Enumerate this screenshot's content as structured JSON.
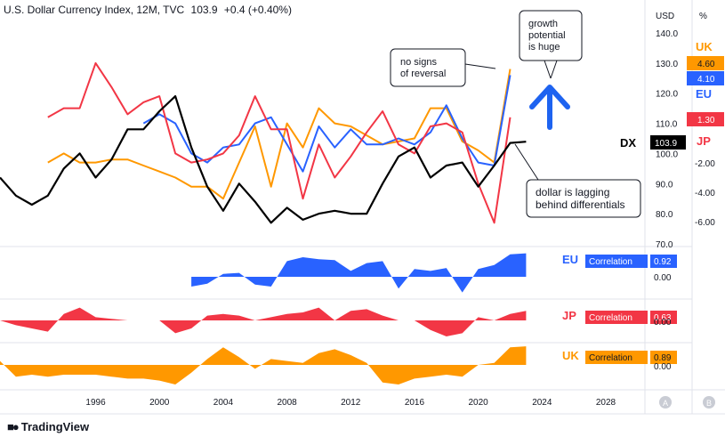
{
  "header": {
    "symbol": "U.S. Dollar Currency Index, 12M, TVC",
    "last": "103.9",
    "change": "+0.4 (+0.40%)"
  },
  "scale_labels": {
    "left_unit": "USD",
    "right_unit": "%"
  },
  "brand": {
    "logo_icon": "tradingview-logo-icon",
    "name": "TradingView"
  },
  "colors": {
    "DX": "#000000",
    "UK": "#ff9800",
    "EU": "#2962ff",
    "JP": "#f23645",
    "annotation_arrow": "#1e63f0"
  },
  "callouts": {
    "no_signs_line1": "no signs",
    "no_signs_line2": "of reversal",
    "growth_line1": "growth",
    "growth_line2": "potential",
    "growth_line3": "is huge",
    "lagging_line1": "dollar is lagging",
    "lagging_line2": "behind differentials"
  },
  "series_labels": {
    "dx": "DX",
    "uk": "UK",
    "eu": "EU",
    "jp": "JP"
  },
  "badges": {
    "uk": "4.60",
    "eu": "4.10",
    "jp": "1.30",
    "dx": "103.9"
  },
  "correlation": {
    "label": "Correlation",
    "zero_label": "0.00",
    "eu": "0.92",
    "jp": "0.63",
    "uk": "0.89"
  },
  "scale_buttons": {
    "auto": "A",
    "base": "B"
  },
  "chart_data": {
    "type": "line",
    "title": "U.S. Dollar Currency Index, 12M, TVC",
    "x": [
      1990,
      1991,
      1992,
      1993,
      1994,
      1995,
      1996,
      1997,
      1998,
      1999,
      2000,
      2001,
      2002,
      2003,
      2004,
      2005,
      2006,
      2007,
      2008,
      2009,
      2010,
      2011,
      2012,
      2013,
      2014,
      2015,
      2016,
      2017,
      2018,
      2019,
      2020,
      2021,
      2022,
      2023
    ],
    "ylim": [
      70,
      140
    ],
    "yticks": [
      "70.0",
      "80.0",
      "90.0",
      "100.0",
      "110.0",
      "120.0",
      "130.0",
      "140.0"
    ],
    "xticks": [
      "1996",
      "2000",
      "2004",
      "2008",
      "2012",
      "2016",
      "2020",
      "2024",
      "2028"
    ],
    "right_yticks": [
      "-6.00",
      "-4.00",
      "-2.00"
    ],
    "series": [
      {
        "name": "DX",
        "color": "#000000",
        "x": [
          1990,
          1991,
          1992,
          1993,
          1994,
          1995,
          1996,
          1997,
          1998,
          1999,
          2000,
          2001,
          2002,
          2003,
          2004,
          2005,
          2006,
          2007,
          2008,
          2009,
          2010,
          2011,
          2012,
          2013,
          2014,
          2015,
          2016,
          2017,
          2018,
          2019,
          2020,
          2021,
          2022,
          2023
        ],
        "values": [
          92,
          86,
          83,
          86,
          95,
          100,
          92,
          98,
          108,
          108,
          114,
          119,
          102,
          89,
          81,
          90,
          84,
          77,
          82,
          78,
          80,
          81,
          80,
          80,
          90,
          99,
          102,
          92,
          96,
          97,
          89,
          96,
          103.5,
          103.9
        ]
      },
      {
        "name": "UK",
        "color": "#ff9800",
        "x": [
          1993,
          1994,
          1995,
          1996,
          1997,
          1998,
          1999,
          2000,
          2001,
          2002,
          2003,
          2004,
          2005,
          2006,
          2007,
          2008,
          2009,
          2010,
          2011,
          2012,
          2013,
          2014,
          2015,
          2016,
          2017,
          2018,
          2019,
          2020,
          2021,
          2022
        ],
        "values": [
          97,
          100,
          97,
          97,
          98,
          98,
          96,
          94,
          92,
          89,
          89,
          85,
          97,
          109,
          89,
          110,
          102,
          115,
          110,
          109,
          106,
          103,
          104,
          105,
          115,
          115,
          104,
          101,
          97,
          128
        ]
      },
      {
        "name": "EU",
        "color": "#2962ff",
        "x": [
          1999,
          2000,
          2001,
          2002,
          2003,
          2004,
          2005,
          2006,
          2007,
          2008,
          2009,
          2010,
          2011,
          2012,
          2013,
          2014,
          2015,
          2016,
          2017,
          2018,
          2019,
          2020,
          2021,
          2022
        ],
        "values": [
          110,
          113,
          110,
          100,
          97,
          102,
          103,
          110,
          112,
          103,
          94,
          109,
          102,
          108,
          103,
          103,
          105,
          103,
          107,
          116,
          105,
          97,
          96,
          126
        ]
      },
      {
        "name": "JP",
        "color": "#f23645",
        "x": [
          1993,
          1994,
          1995,
          1996,
          1997,
          1998,
          1999,
          2000,
          2001,
          2002,
          2003,
          2004,
          2005,
          2006,
          2007,
          2008,
          2009,
          2010,
          2011,
          2012,
          2013,
          2014,
          2015,
          2016,
          2017,
          2018,
          2019,
          2020,
          2021,
          2022
        ],
        "values": [
          112,
          115,
          115,
          130,
          122,
          113,
          117,
          119,
          100,
          97,
          98,
          100,
          106,
          119,
          108,
          108,
          85,
          103,
          92,
          99,
          107,
          114,
          103,
          100,
          109,
          110,
          107,
          90,
          77,
          112
        ]
      }
    ],
    "correlation_panels": [
      {
        "name": "EU",
        "label": "Correlation",
        "value": "0.92",
        "color": "#2962ff",
        "x": [
          2002,
          2003,
          2004,
          2005,
          2006,
          2007,
          2008,
          2009,
          2010,
          2011,
          2012,
          2013,
          2014,
          2015,
          2016,
          2017,
          2018,
          2019,
          2020,
          2021,
          2022,
          2023
        ],
        "values": [
          -0.5,
          -0.35,
          0.15,
          0.2,
          -0.4,
          -0.5,
          0.8,
          1.0,
          0.9,
          0.85,
          0.3,
          0.7,
          0.8,
          -0.6,
          0.4,
          0.3,
          0.45,
          -0.8,
          0.4,
          0.6,
          1.15,
          1.2
        ]
      },
      {
        "name": "JP",
        "label": "Correlation",
        "value": "0.63",
        "color": "#f23645",
        "x": [
          1990,
          1991,
          1992,
          1993,
          1994,
          1995,
          1996,
          1997,
          1998,
          1999,
          2000,
          2001,
          2002,
          2003,
          2004,
          2005,
          2006,
          2007,
          2008,
          2009,
          2010,
          2011,
          2012,
          2013,
          2014,
          2015,
          2016,
          2017,
          2018,
          2019,
          2020,
          2021,
          2022,
          2023
        ],
        "values": [
          0,
          -0.3,
          -0.5,
          -0.7,
          0.4,
          0.8,
          0.2,
          0.1,
          0,
          0,
          0,
          -0.8,
          -0.5,
          0.3,
          0.4,
          0.3,
          0,
          0.2,
          0.4,
          0.5,
          0.8,
          0,
          0.6,
          0.7,
          0.3,
          0,
          0,
          -0.6,
          -1.0,
          -0.8,
          0.2,
          0,
          0.4,
          0.6
        ]
      },
      {
        "name": "UK",
        "label": "Correlation",
        "value": "0.89",
        "color": "#ff9800",
        "x": [
          1990,
          1991,
          1992,
          1993,
          1994,
          1995,
          1996,
          1997,
          1998,
          1999,
          2000,
          2001,
          2002,
          2003,
          2004,
          2005,
          2006,
          2007,
          2008,
          2009,
          2010,
          2011,
          2012,
          2013,
          2014,
          2015,
          2016,
          2017,
          2018,
          2019,
          2020,
          2021,
          2022,
          2023
        ],
        "values": [
          0.2,
          -0.6,
          -0.5,
          -0.6,
          -0.5,
          -0.5,
          -0.5,
          -0.6,
          -0.7,
          -0.7,
          -0.8,
          -1.0,
          -0.4,
          0.3,
          0.9,
          0.4,
          -0.2,
          0.3,
          0.2,
          0.1,
          0.6,
          0.8,
          0.5,
          0.1,
          -0.9,
          -1.0,
          -0.7,
          -0.6,
          -0.5,
          -0.6,
          0,
          0.1,
          0.9,
          0.95
        ]
      }
    ]
  }
}
